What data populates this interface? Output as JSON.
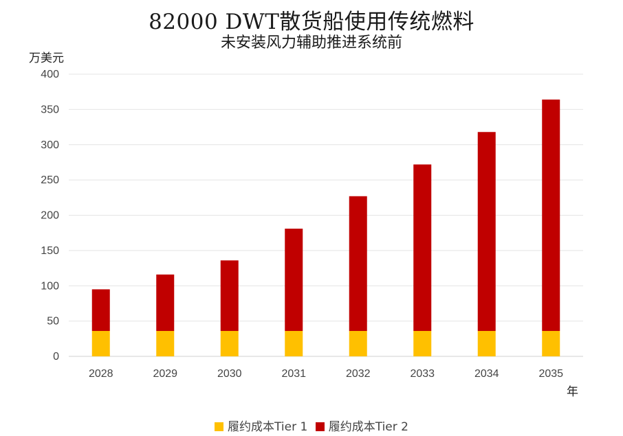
{
  "chart_data": {
    "type": "bar",
    "stacked": true,
    "title": "82000 DWT散货船使用传统燃料",
    "subtitle": "未安装风力辅助推进系统前",
    "ylabel": "万美元",
    "xlabel": "年",
    "ylim": [
      0,
      400
    ],
    "yticks": [
      0,
      50,
      100,
      150,
      200,
      250,
      300,
      350,
      400
    ],
    "grid": true,
    "legend_position": "bottom",
    "categories": [
      "2028",
      "2029",
      "2030",
      "2031",
      "2032",
      "2033",
      "2034",
      "2035"
    ],
    "series": [
      {
        "name": "履约成本Tier 1",
        "color": "#FFC000",
        "values": [
          36,
          36,
          36,
          36,
          36,
          36,
          36,
          36
        ]
      },
      {
        "name": "履约成本Tier 2",
        "color": "#C00000",
        "values": [
          59,
          80,
          100,
          145,
          191,
          236,
          282,
          328
        ]
      }
    ]
  }
}
